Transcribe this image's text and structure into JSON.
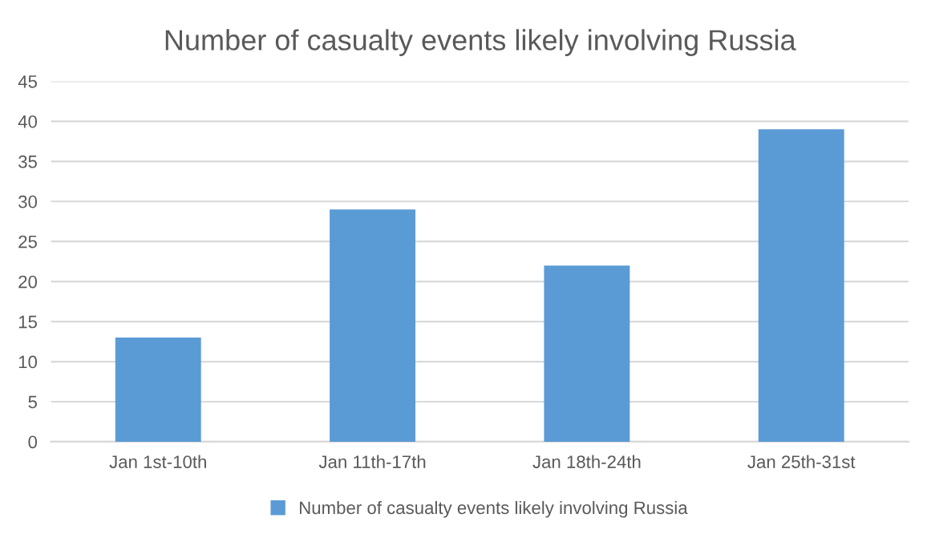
{
  "chart_data": {
    "type": "bar",
    "title": "Number of casualty events likely involving Russia",
    "categories": [
      "Jan 1st-10th",
      "Jan 11th-17th",
      "Jan 18th-24th",
      "Jan 25th-31st"
    ],
    "series": [
      {
        "name": "Number of casualty events likely involving Russia",
        "color": "#5b9bd5",
        "values": [
          13,
          29,
          22,
          39
        ]
      }
    ],
    "ylim": [
      0,
      45
    ],
    "yticks": [
      0,
      5,
      10,
      15,
      20,
      25,
      30,
      35,
      40,
      45
    ],
    "grid": "y",
    "legend": "bottom"
  }
}
